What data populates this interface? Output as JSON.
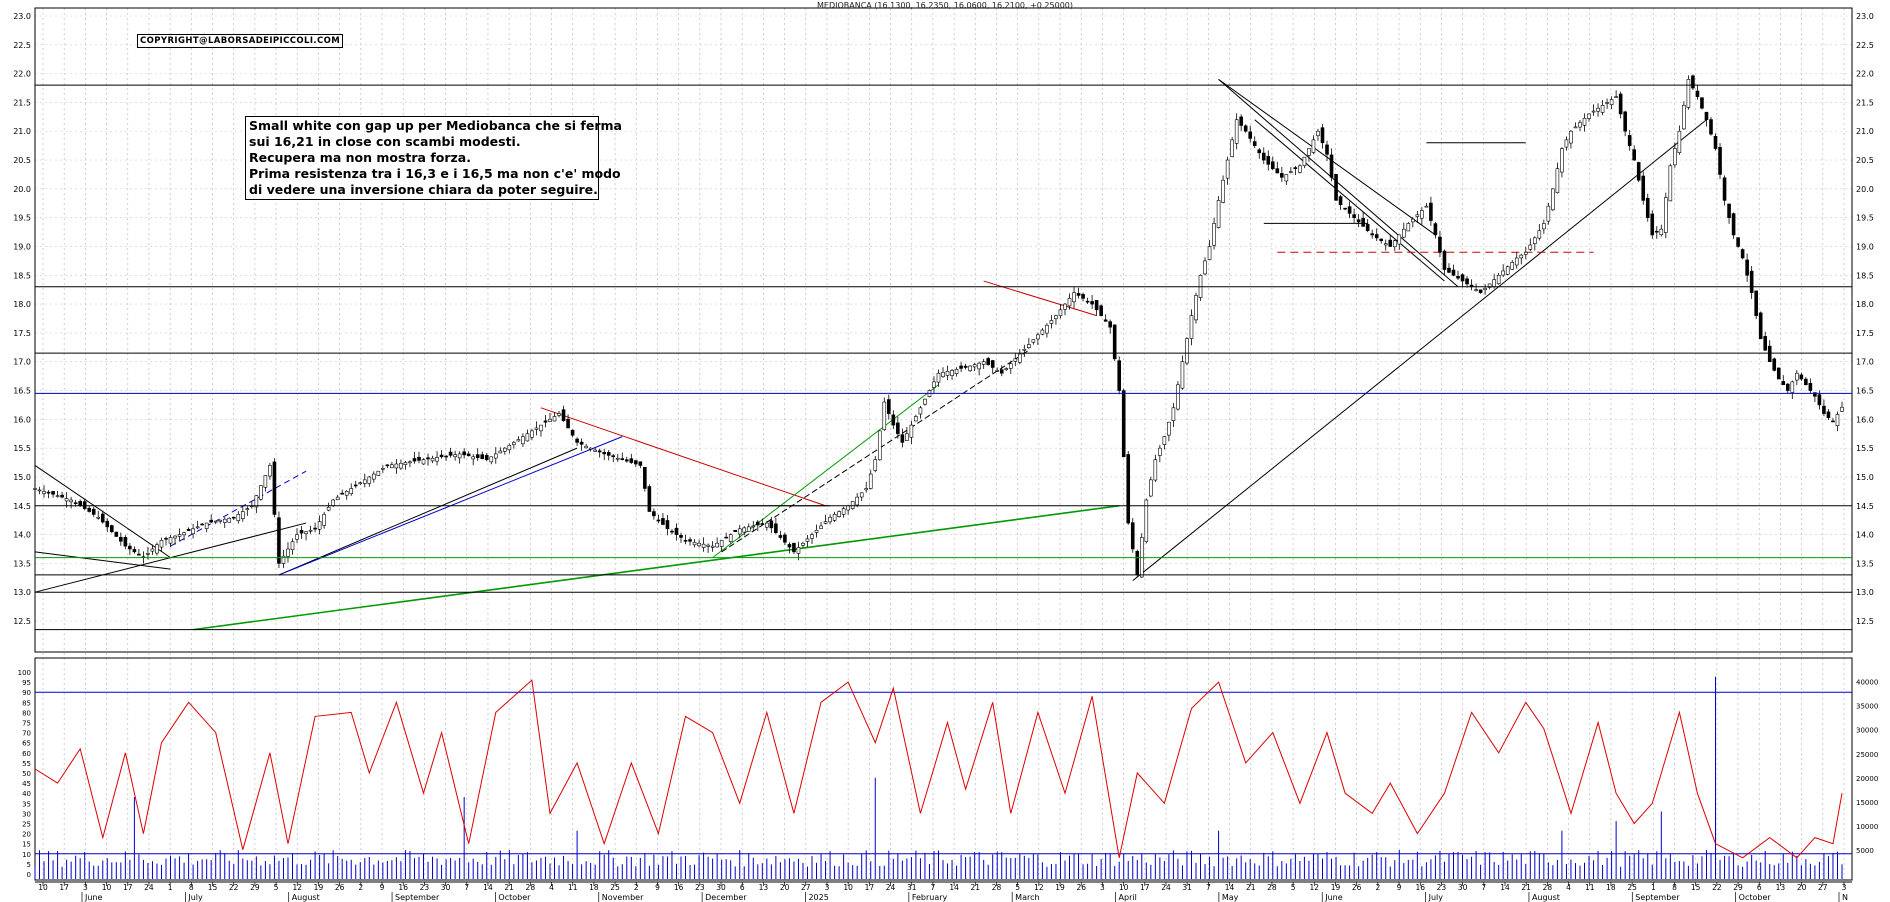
{
  "header": {
    "title": "MEDIOBANCA (16.1300, 16.2350, 16.0600, 16.2100, +0.25000)",
    "copyright": "COPYRIGHT@LABORSADEIPICCOLI.COM"
  },
  "annotation": {
    "lines": [
      "Small white con gap up per Mediobanca che si ferma",
      "sui 16,21 in close con scambi modesti.",
      "Recupera ma non mostra forza.",
      "Prima resistenza tra i 16,3 e i 16,5 ma non c'e' modo",
      "di vedere una inversione chiara da poter seguire."
    ]
  },
  "chart_data": {
    "type": "line",
    "title": "MEDIOBANCA (16.1300, 16.2350, 16.0600, 16.2100, +0.25000)",
    "price_panel": {
      "ylim": [
        12.5,
        23.0
      ],
      "yticks": [
        "12.5",
        "13.0",
        "13.5",
        "14.0",
        "14.5",
        "15.0",
        "15.5",
        "16.0",
        "16.5",
        "17.0",
        "17.5",
        "18.0",
        "18.5",
        "19.0",
        "19.5",
        "20.0",
        "20.5",
        "21.0",
        "21.5",
        "22.0",
        "22.5",
        "23.0"
      ],
      "last": {
        "open": 16.13,
        "high": 16.235,
        "low": 16.06,
        "close": 16.21,
        "change": 0.25
      },
      "close_path": [
        [
          0,
          14.8
        ],
        [
          8,
          14.6
        ],
        [
          14,
          14.3
        ],
        [
          20,
          13.8
        ],
        [
          24,
          13.6
        ],
        [
          28,
          13.9
        ],
        [
          32,
          14.0
        ],
        [
          38,
          14.2
        ],
        [
          44,
          14.3
        ],
        [
          48,
          14.5
        ],
        [
          52,
          15.2
        ],
        [
          54,
          13.5
        ],
        [
          58,
          14.0
        ],
        [
          62,
          14.1
        ],
        [
          66,
          14.6
        ],
        [
          72,
          14.9
        ],
        [
          78,
          15.2
        ],
        [
          86,
          15.3
        ],
        [
          94,
          15.4
        ],
        [
          100,
          15.3
        ],
        [
          106,
          15.6
        ],
        [
          112,
          15.9
        ],
        [
          116,
          16.1
        ],
        [
          120,
          15.6
        ],
        [
          126,
          15.4
        ],
        [
          130,
          15.3
        ],
        [
          134,
          15.2
        ],
        [
          136,
          14.4
        ],
        [
          140,
          14.1
        ],
        [
          144,
          13.9
        ],
        [
          150,
          13.8
        ],
        [
          156,
          14.1
        ],
        [
          162,
          14.2
        ],
        [
          168,
          13.7
        ],
        [
          172,
          14.0
        ],
        [
          176,
          14.3
        ],
        [
          180,
          14.5
        ],
        [
          184,
          14.8
        ],
        [
          186,
          15.3
        ],
        [
          188,
          16.3
        ],
        [
          190,
          15.9
        ],
        [
          192,
          15.6
        ],
        [
          196,
          16.2
        ],
        [
          200,
          16.8
        ],
        [
          206,
          16.9
        ],
        [
          210,
          17.0
        ],
        [
          214,
          16.8
        ],
        [
          220,
          17.3
        ],
        [
          226,
          17.8
        ],
        [
          230,
          18.2
        ],
        [
          234,
          18.0
        ],
        [
          238,
          17.6
        ],
        [
          240,
          16.5
        ],
        [
          242,
          14.2
        ],
        [
          244,
          13.3
        ],
        [
          246,
          14.6
        ],
        [
          248,
          15.3
        ],
        [
          250,
          15.7
        ],
        [
          252,
          16.2
        ],
        [
          254,
          17.0
        ],
        [
          256,
          17.8
        ],
        [
          258,
          18.5
        ],
        [
          260,
          19.0
        ],
        [
          262,
          19.8
        ],
        [
          264,
          20.5
        ],
        [
          266,
          21.2
        ],
        [
          268,
          21.0
        ],
        [
          272,
          20.5
        ],
        [
          276,
          20.2
        ],
        [
          280,
          20.4
        ],
        [
          284,
          21.0
        ],
        [
          286,
          20.6
        ],
        [
          288,
          19.8
        ],
        [
          292,
          19.5
        ],
        [
          296,
          19.2
        ],
        [
          300,
          19.0
        ],
        [
          304,
          19.4
        ],
        [
          308,
          19.7
        ],
        [
          310,
          19.2
        ],
        [
          312,
          18.6
        ],
        [
          316,
          18.4
        ],
        [
          320,
          18.2
        ],
        [
          324,
          18.5
        ],
        [
          328,
          18.8
        ],
        [
          330,
          18.9
        ],
        [
          334,
          19.4
        ],
        [
          336,
          20.0
        ],
        [
          338,
          20.7
        ],
        [
          340,
          21.0
        ],
        [
          344,
          21.3
        ],
        [
          348,
          21.5
        ],
        [
          350,
          21.6
        ],
        [
          352,
          21.0
        ],
        [
          354,
          20.5
        ],
        [
          356,
          19.8
        ],
        [
          358,
          19.2
        ],
        [
          360,
          19.3
        ],
        [
          362,
          20.4
        ],
        [
          364,
          21.0
        ],
        [
          366,
          21.9
        ],
        [
          368,
          21.6
        ],
        [
          370,
          21.2
        ],
        [
          372,
          20.7
        ],
        [
          374,
          19.8
        ],
        [
          376,
          19.2
        ],
        [
          378,
          18.8
        ],
        [
          380,
          18.2
        ],
        [
          382,
          17.4
        ],
        [
          384,
          17.0
        ],
        [
          386,
          16.7
        ],
        [
          388,
          16.5
        ],
        [
          390,
          16.8
        ],
        [
          392,
          16.6
        ],
        [
          394,
          16.4
        ],
        [
          396,
          16.1
        ],
        [
          398,
          15.96
        ],
        [
          400,
          16.21
        ]
      ],
      "horizontal_levels": [
        {
          "price": 21.8,
          "color": "#000000"
        },
        {
          "price": 18.3,
          "color": "#000000"
        },
        {
          "price": 17.15,
          "color": "#000000"
        },
        {
          "price": 16.45,
          "color": "#0000cc"
        },
        {
          "price": 14.5,
          "color": "#000000"
        },
        {
          "price": 13.6,
          "color": "#009900"
        },
        {
          "price": 13.3,
          "color": "#000000"
        },
        {
          "price": 13.0,
          "color": "#000000"
        },
        {
          "price": 12.35,
          "color": "#000000"
        }
      ]
    },
    "indicator_panel": {
      "left_ticks": [
        "0",
        "5",
        "10",
        "15",
        "20",
        "25",
        "30",
        "35",
        "40",
        "45",
        "50",
        "55",
        "60",
        "65",
        "70",
        "75",
        "80",
        "85",
        "90",
        "95",
        "100"
      ],
      "right_ticks": [
        "5000",
        "10000",
        "15000",
        "20000",
        "25000",
        "30000",
        "35000",
        "40000"
      ],
      "oscillator_levels": [
        90,
        10
      ],
      "oscillator": [
        [
          0,
          52
        ],
        [
          5,
          45
        ],
        [
          10,
          62
        ],
        [
          15,
          18
        ],
        [
          20,
          60
        ],
        [
          24,
          20
        ],
        [
          28,
          65
        ],
        [
          34,
          85
        ],
        [
          40,
          70
        ],
        [
          46,
          12
        ],
        [
          52,
          60
        ],
        [
          56,
          15
        ],
        [
          62,
          78
        ],
        [
          70,
          80
        ],
        [
          74,
          50
        ],
        [
          80,
          85
        ],
        [
          86,
          40
        ],
        [
          90,
          70
        ],
        [
          96,
          15
        ],
        [
          102,
          80
        ],
        [
          110,
          96
        ],
        [
          114,
          30
        ],
        [
          120,
          55
        ],
        [
          126,
          15
        ],
        [
          132,
          55
        ],
        [
          138,
          20
        ],
        [
          144,
          78
        ],
        [
          150,
          70
        ],
        [
          156,
          35
        ],
        [
          162,
          80
        ],
        [
          168,
          30
        ],
        [
          174,
          85
        ],
        [
          180,
          95
        ],
        [
          186,
          65
        ],
        [
          190,
          92
        ],
        [
          196,
          30
        ],
        [
          202,
          75
        ],
        [
          206,
          42
        ],
        [
          212,
          85
        ],
        [
          216,
          30
        ],
        [
          222,
          80
        ],
        [
          228,
          40
        ],
        [
          234,
          88
        ],
        [
          240,
          8
        ],
        [
          244,
          50
        ],
        [
          250,
          35
        ],
        [
          256,
          82
        ],
        [
          262,
          95
        ],
        [
          268,
          55
        ],
        [
          274,
          70
        ],
        [
          280,
          35
        ],
        [
          286,
          70
        ],
        [
          290,
          40
        ],
        [
          296,
          30
        ],
        [
          300,
          45
        ],
        [
          306,
          20
        ],
        [
          312,
          40
        ],
        [
          318,
          80
        ],
        [
          324,
          60
        ],
        [
          330,
          85
        ],
        [
          334,
          72
        ],
        [
          340,
          30
        ],
        [
          346,
          75
        ],
        [
          350,
          40
        ],
        [
          354,
          25
        ],
        [
          358,
          35
        ],
        [
          364,
          80
        ],
        [
          368,
          40
        ],
        [
          372,
          15
        ],
        [
          378,
          8
        ],
        [
          384,
          18
        ],
        [
          390,
          8
        ],
        [
          394,
          18
        ],
        [
          398,
          15
        ],
        [
          400,
          40
        ]
      ],
      "volume_spikes": [
        [
          22,
          16000
        ],
        [
          95,
          16000
        ],
        [
          120,
          9000
        ],
        [
          186,
          20000
        ],
        [
          262,
          9000
        ],
        [
          338,
          9000
        ],
        [
          350,
          11000
        ],
        [
          360,
          13000
        ],
        [
          372,
          41000
        ]
      ]
    },
    "x_axis": {
      "day_ticks": [
        "10",
        "17",
        "3",
        "10",
        "17",
        "24",
        "1",
        "8",
        "15",
        "22",
        "29",
        "5",
        "12",
        "19",
        "26",
        "2",
        "9",
        "16",
        "23",
        "30",
        "7",
        "14",
        "21",
        "28",
        "4",
        "11",
        "18",
        "25",
        "2",
        "9",
        "16",
        "23",
        "30",
        "6",
        "13",
        "20",
        "27",
        "3",
        "10",
        "17",
        "24",
        "31",
        "7",
        "14",
        "21",
        "28",
        "5",
        "12",
        "19",
        "26",
        "3",
        "10",
        "17",
        "24",
        "31",
        "7",
        "14",
        "21",
        "28",
        "5",
        "12",
        "19",
        "26",
        "2",
        "9",
        "16",
        "23",
        "30",
        "7",
        "14",
        "21",
        "28",
        "4",
        "11",
        "18",
        "25",
        "1",
        "8",
        "15",
        "22",
        "29",
        "6",
        "13",
        "20",
        "27",
        "3"
      ],
      "month_labels": [
        "June",
        "July",
        "August",
        "September",
        "October",
        "November",
        "December",
        "2025",
        "February",
        "March",
        "April",
        "May",
        "June",
        "July",
        "August",
        "September",
        "October",
        "N"
      ]
    }
  }
}
